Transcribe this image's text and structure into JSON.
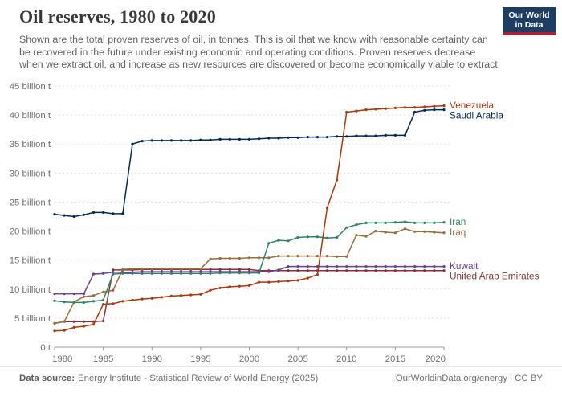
{
  "header": {
    "title": "Oil reserves, 1980 to 2020",
    "subtitle": "Shown are the total proven reserves of oil, in tonnes. This is oil that we know with reasonable certainty can be recovered in the future under existing economic and operating conditions. Proven reserves decrease when we extract oil, and increase as new resources are discovered or become economically viable to extract.",
    "logo": {
      "line1": "Our World",
      "line2": "in Data",
      "bg_color": "#1D3D63",
      "bar_color": "#A82333"
    }
  },
  "footer": {
    "source_label": "Data source:",
    "source_text": "Energy Institute - Statistical Review of World Energy (2025)",
    "credit": "OurWorldinData.org/energy | CC BY"
  },
  "chart_data": {
    "type": "line",
    "title": "Oil reserves, 1980 to 2020",
    "unit": "billion tonnes",
    "xlim": [
      1980,
      2020
    ],
    "ylim": [
      0,
      45
    ],
    "grid": true,
    "legend_position": "right-end-labels",
    "x_ticks": [
      1980,
      1985,
      1990,
      1995,
      2000,
      2005,
      2010,
      2015,
      2020
    ],
    "y_ticks": [
      {
        "value": 0,
        "label": "0 t"
      },
      {
        "value": 5,
        "label": "5 billion t"
      },
      {
        "value": 10,
        "label": "10 billion t"
      },
      {
        "value": 15,
        "label": "15 billion t"
      },
      {
        "value": 20,
        "label": "20 billion t"
      },
      {
        "value": 25,
        "label": "25 billion t"
      },
      {
        "value": 30,
        "label": "30 billion t"
      },
      {
        "value": 35,
        "label": "35 billion t"
      },
      {
        "value": 40,
        "label": "40 billion t"
      },
      {
        "value": 45,
        "label": "45 billion t"
      }
    ],
    "x": [
      1980,
      1981,
      1982,
      1983,
      1984,
      1985,
      1986,
      1987,
      1988,
      1989,
      1990,
      1991,
      1992,
      1993,
      1994,
      1995,
      1996,
      1997,
      1998,
      1999,
      2000,
      2001,
      2002,
      2003,
      2004,
      2005,
      2006,
      2007,
      2008,
      2009,
      2010,
      2011,
      2012,
      2013,
      2014,
      2015,
      2016,
      2017,
      2018,
      2019,
      2020
    ],
    "series": [
      {
        "name": "Venezuela",
        "color": "#B13507",
        "values": [
          2.8,
          2.9,
          3.4,
          3.6,
          3.9,
          7.4,
          7.5,
          7.9,
          8.1,
          8.3,
          8.4,
          8.6,
          8.8,
          8.9,
          9.0,
          9.1,
          9.8,
          10.2,
          10.4,
          10.5,
          10.6,
          11.2,
          11.2,
          11.3,
          11.4,
          11.5,
          11.9,
          12.5,
          24.0,
          28.8,
          40.5,
          40.7,
          40.9,
          41.0,
          41.1,
          41.2,
          41.3,
          41.3,
          41.4,
          41.5,
          41.6
        ]
      },
      {
        "name": "Saudi Arabia",
        "color": "#00295B",
        "values": [
          22.9,
          22.7,
          22.5,
          22.8,
          23.2,
          23.2,
          23.0,
          23.0,
          35.0,
          35.5,
          35.6,
          35.6,
          35.6,
          35.6,
          35.6,
          35.7,
          35.7,
          35.8,
          35.8,
          35.8,
          35.8,
          35.9,
          36.0,
          36.0,
          36.1,
          36.1,
          36.2,
          36.2,
          36.2,
          36.3,
          36.3,
          36.4,
          36.4,
          36.4,
          36.5,
          36.5,
          36.5,
          40.5,
          40.8,
          40.9,
          40.9
        ]
      },
      {
        "name": "Iran",
        "color": "#2C8465",
        "values": [
          8.0,
          7.8,
          7.7,
          7.7,
          7.9,
          8.1,
          12.6,
          12.7,
          12.7,
          12.7,
          12.7,
          12.7,
          12.7,
          12.7,
          12.7,
          12.7,
          12.7,
          12.8,
          12.8,
          12.8,
          12.8,
          12.8,
          17.9,
          18.4,
          18.3,
          18.9,
          19.0,
          19.0,
          18.8,
          18.9,
          20.6,
          21.1,
          21.4,
          21.4,
          21.4,
          21.5,
          21.6,
          21.4,
          21.4,
          21.4,
          21.5
        ]
      },
      {
        "name": "Iraq",
        "color": "#996D39",
        "values": [
          4.1,
          4.4,
          7.8,
          8.7,
          8.9,
          9.5,
          9.8,
          13.4,
          13.5,
          13.5,
          13.5,
          13.5,
          13.5,
          13.5,
          13.5,
          13.5,
          15.2,
          15.3,
          15.3,
          15.3,
          15.4,
          15.4,
          15.4,
          15.7,
          15.7,
          15.7,
          15.7,
          15.7,
          15.7,
          15.6,
          15.6,
          19.3,
          19.1,
          20.0,
          19.8,
          19.7,
          20.4,
          19.9,
          19.9,
          19.8,
          19.7
        ]
      },
      {
        "name": "Kuwait",
        "color": "#6D3E91",
        "values": [
          9.2,
          9.2,
          9.2,
          9.2,
          12.6,
          12.7,
          12.9,
          12.9,
          12.9,
          13.0,
          13.0,
          13.0,
          13.0,
          13.0,
          13.0,
          13.0,
          13.0,
          13.0,
          13.0,
          13.0,
          13.0,
          13.0,
          13.0,
          13.3,
          13.9,
          13.9,
          13.9,
          13.9,
          13.9,
          13.9,
          13.9,
          13.9,
          13.9,
          13.9,
          13.9,
          13.9,
          13.9,
          13.9,
          13.9,
          13.9,
          13.9
        ]
      },
      {
        "name": "United Arab Emirates",
        "color": "#883039",
        "values": [
          4.1,
          4.4,
          4.4,
          4.4,
          4.4,
          4.5,
          13.3,
          13.3,
          13.3,
          13.4,
          13.4,
          13.4,
          13.4,
          13.4,
          13.4,
          13.4,
          13.4,
          13.4,
          13.4,
          13.4,
          13.4,
          13.2,
          13.2,
          13.2,
          13.2,
          13.2,
          13.2,
          13.2,
          13.2,
          13.2,
          13.2,
          13.2,
          13.2,
          13.2,
          13.2,
          13.2,
          13.2,
          13.2,
          13.2,
          13.2,
          13.2
        ]
      }
    ]
  }
}
